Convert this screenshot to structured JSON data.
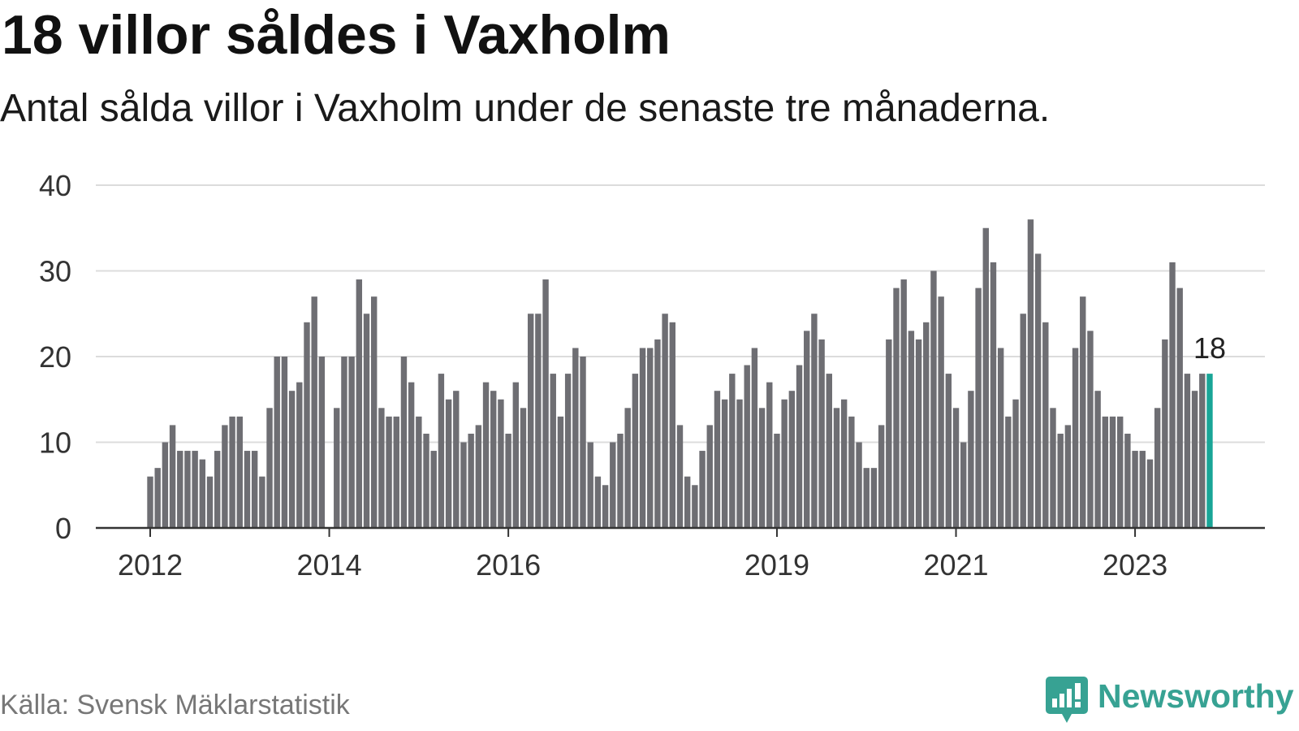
{
  "chart_data": {
    "type": "bar",
    "title": "18 villor såldes i Vaxholm",
    "subtitle": "Antal sålda villor i Vaxholm under de senaste tre månaderna.",
    "start_year": 2012,
    "start_month": 1,
    "values": [
      6,
      7,
      10,
      12,
      9,
      9,
      9,
      8,
      6,
      9,
      12,
      13,
      13,
      9,
      9,
      6,
      14,
      20,
      20,
      16,
      17,
      24,
      27,
      20,
      0,
      14,
      20,
      20,
      29,
      25,
      27,
      14,
      13,
      13,
      20,
      17,
      13,
      11,
      9,
      18,
      15,
      16,
      10,
      11,
      12,
      17,
      16,
      15,
      11,
      17,
      14,
      25,
      25,
      29,
      18,
      13,
      18,
      21,
      20,
      10,
      6,
      5,
      10,
      11,
      14,
      18,
      21,
      21,
      22,
      25,
      24,
      12,
      6,
      5,
      9,
      12,
      16,
      15,
      18,
      15,
      19,
      21,
      14,
      17,
      11,
      15,
      16,
      19,
      23,
      25,
      22,
      18,
      14,
      15,
      13,
      10,
      7,
      7,
      12,
      22,
      28,
      29,
      23,
      22,
      24,
      30,
      27,
      18,
      14,
      10,
      16,
      28,
      35,
      31,
      21,
      13,
      15,
      25,
      36,
      32,
      24,
      14,
      11,
      12,
      21,
      27,
      23,
      16,
      13,
      13,
      13,
      11,
      9,
      9,
      8,
      14,
      22,
      31,
      28,
      18,
      16,
      18,
      18
    ],
    "ylim": [
      0,
      40
    ],
    "yticks": [
      0,
      10,
      20,
      30,
      40
    ],
    "xticks": [
      {
        "label": "2012",
        "year": 2012
      },
      {
        "label": "2014",
        "year": 2014
      },
      {
        "label": "2016",
        "year": 2016
      },
      {
        "label": "2019",
        "year": 2019
      },
      {
        "label": "2021",
        "year": 2021
      },
      {
        "label": "2023",
        "year": 2023
      }
    ],
    "highlight": {
      "index": 142,
      "label": "18"
    },
    "grid": true,
    "colors": {
      "bar": "#6e6e73",
      "highlight": "#19a597",
      "grid": "#dcdcdc",
      "axis": "#333333"
    }
  },
  "source": "Källa: Svensk Mäklarstatistik",
  "brand": {
    "name": "Newsworthy",
    "icon": "newsworthy-logo-icon",
    "color": "#37a293"
  }
}
